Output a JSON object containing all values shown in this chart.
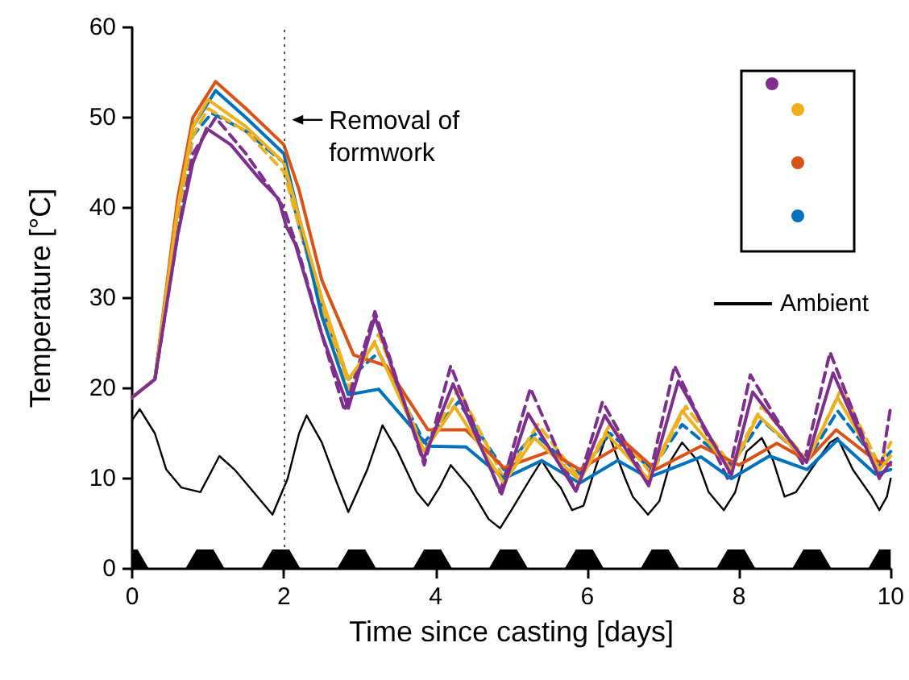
{
  "chart_data": {
    "type": "line",
    "xlabel": "Time since casting [days]",
    "ylabel": "Temperature [°C]",
    "xlim": [
      0,
      10
    ],
    "xticks": [
      0,
      2,
      4,
      6,
      8,
      10
    ],
    "ylim": [
      0,
      60
    ],
    "yticks": [
      0,
      10,
      20,
      30,
      40,
      50,
      60
    ],
    "grid": false,
    "legend": "right",
    "marker": "none",
    "series": [
      {
        "color": "#0072bd",
        "line_style": "dashed",
        "x": [
          0,
          0.3,
          0.6,
          0.8,
          1.05,
          1.5,
          2,
          2.2,
          2.5,
          2.85,
          3.25,
          3.85,
          4.3,
          4.9,
          5.3,
          5.9,
          6.3,
          6.85,
          7.25,
          7.9,
          8.3,
          8.9,
          9.3,
          9.85,
          10
        ],
        "values": [
          19,
          21,
          38,
          48,
          50.5,
          48.5,
          45,
          38,
          29,
          21,
          24,
          14,
          18.5,
          11,
          15,
          10.5,
          15,
          11,
          16,
          11.5,
          16.5,
          12,
          17.5,
          11.5,
          13
        ]
      },
      {
        "color": "#edb120",
        "line_style": "dashed",
        "x": [
          0,
          0.3,
          0.6,
          0.8,
          1,
          1.5,
          2,
          2.2,
          2.5,
          2.85,
          3.25,
          3.85,
          4.3,
          4.9,
          5.35,
          5.9,
          6.3,
          6.85,
          7.3,
          7.9,
          8.3,
          8.9,
          9.35,
          9.85,
          10
        ],
        "values": [
          19,
          21,
          39,
          48,
          51,
          48.5,
          44,
          38,
          29,
          20,
          26,
          13,
          20,
          10,
          16,
          10,
          16,
          10.5,
          18,
          11.5,
          18,
          12,
          20,
          11.5,
          14
        ]
      },
      {
        "color": "#7e2f8e",
        "line_style": "dashed",
        "x": [
          0,
          0.3,
          0.6,
          0.8,
          1.1,
          1.5,
          2,
          2.2,
          2.5,
          2.8,
          3.2,
          3.85,
          4.2,
          4.85,
          5.25,
          5.85,
          6.2,
          6.8,
          7.15,
          7.85,
          8.15,
          8.85,
          9.2,
          9.85,
          10
        ],
        "values": [
          19,
          21,
          37,
          46,
          50,
          46,
          40,
          35,
          26,
          17.5,
          28.5,
          11.5,
          22.5,
          8.5,
          20,
          8.5,
          18.5,
          9.5,
          22.5,
          10,
          21.5,
          11.5,
          24,
          10,
          18
        ]
      },
      {
        "color": "#0072bd",
        "line_style": "solid",
        "x": [
          0,
          0.3,
          0.6,
          0.8,
          1.1,
          1.5,
          2,
          2.2,
          2.5,
          2.85,
          3.25,
          3.9,
          4.4,
          4.9,
          5.4,
          5.9,
          6.4,
          6.8,
          7.5,
          7.9,
          8.4,
          8.9,
          9.3,
          9.8,
          10
        ],
        "values": [
          19,
          21,
          40,
          49,
          53,
          50,
          46,
          39,
          28,
          19.3,
          19.9,
          13.6,
          13.5,
          10,
          12,
          9.5,
          12,
          10.1,
          12.4,
          10,
          12.5,
          11,
          14.3,
          10.5,
          11
        ]
      },
      {
        "color": "#d95319",
        "line_style": "solid",
        "x": [
          0,
          0.3,
          0.6,
          0.8,
          1.1,
          1.5,
          2,
          2.2,
          2.5,
          2.92,
          3.35,
          3.9,
          4.4,
          4.9,
          5.5,
          5.9,
          6.5,
          6.9,
          7.5,
          8,
          8.5,
          8.9,
          9.28,
          9.8,
          10
        ],
        "values": [
          19,
          21,
          41,
          50,
          54,
          51,
          47,
          42,
          32,
          23.7,
          22.5,
          15.4,
          15.4,
          11.2,
          13,
          11,
          14,
          11,
          13.6,
          11.5,
          13.9,
          12,
          15.4,
          12,
          11.5
        ]
      },
      {
        "color": "#edb120",
        "line_style": "solid",
        "x": [
          0,
          0.3,
          0.6,
          0.8,
          1,
          1.5,
          2,
          2.2,
          2.5,
          2.85,
          3.2,
          3.85,
          4.25,
          4.9,
          5.3,
          5.9,
          6.25,
          6.8,
          7.25,
          7.9,
          8.25,
          8.9,
          9.3,
          9.85,
          10
        ],
        "values": [
          19,
          21,
          40,
          49,
          52,
          49,
          45,
          39,
          30,
          21,
          25,
          13,
          18,
          9.5,
          14.5,
          9.8,
          15,
          10,
          17.5,
          11,
          17,
          12,
          19,
          11,
          12.5
        ]
      },
      {
        "color": "#7e2f8e",
        "line_style": "solid",
        "x": [
          0,
          0.3,
          0.6,
          0.8,
          0.98,
          1.3,
          1.7,
          1.93,
          2.03,
          2.15,
          2.5,
          2.85,
          3.2,
          3.84,
          4.23,
          4.87,
          5.22,
          5.85,
          6.23,
          6.81,
          7.2,
          7.9,
          8.18,
          8.89,
          9.24,
          9.85,
          10
        ],
        "values": [
          19,
          21,
          37,
          45,
          48.8,
          47,
          43,
          41,
          38,
          36,
          26,
          17.8,
          27.9,
          12.1,
          20.5,
          8.3,
          17.2,
          8.6,
          17,
          9.2,
          20.8,
          10.4,
          19.6,
          11.8,
          21.7,
          10.1,
          11.8
        ]
      },
      {
        "name": "Ambient",
        "color": "#000000",
        "line_style": "solid",
        "x": [
          0,
          0.1,
          0.3,
          0.45,
          0.65,
          0.9,
          1.15,
          1.35,
          1.5,
          1.75,
          1.85,
          2.05,
          2.2,
          2.3,
          2.5,
          2.7,
          2.85,
          3.1,
          3.3,
          3.5,
          3.75,
          3.9,
          4.05,
          4.2,
          4.45,
          4.7,
          4.85,
          5,
          5.25,
          5.4,
          5.55,
          5.65,
          5.8,
          5.95,
          6.1,
          6.27,
          6.5,
          6.6,
          6.8,
          6.95,
          7.1,
          7.25,
          7.45,
          7.6,
          7.8,
          7.95,
          8.1,
          8.3,
          8.45,
          8.6,
          8.75,
          8.95,
          9.2,
          9.3,
          9.5,
          9.75,
          9.85,
          9.95,
          10
        ],
        "values": [
          16.5,
          17.7,
          15,
          11,
          9,
          8.5,
          12.5,
          11,
          9.5,
          7,
          6,
          10,
          15,
          17,
          14,
          9.5,
          6.3,
          11,
          15.9,
          13,
          8.5,
          7,
          9,
          11.5,
          9,
          5.5,
          4.5,
          6.5,
          10,
          12,
          10,
          9,
          6.5,
          7,
          11,
          15.2,
          10,
          8,
          6,
          7.5,
          12,
          14,
          12,
          8.5,
          6.5,
          8.5,
          13,
          14.5,
          12,
          8,
          8.5,
          11,
          14,
          14.5,
          11,
          8,
          6.5,
          8,
          10
        ]
      }
    ],
    "ref_lines": [
      {
        "axis": "x",
        "value": 2,
        "line_style": "dotted",
        "color": "#555555"
      }
    ],
    "annotations": [
      {
        "text": "Removal of formwork",
        "x": 2,
        "y": 46
      }
    ]
  }
}
